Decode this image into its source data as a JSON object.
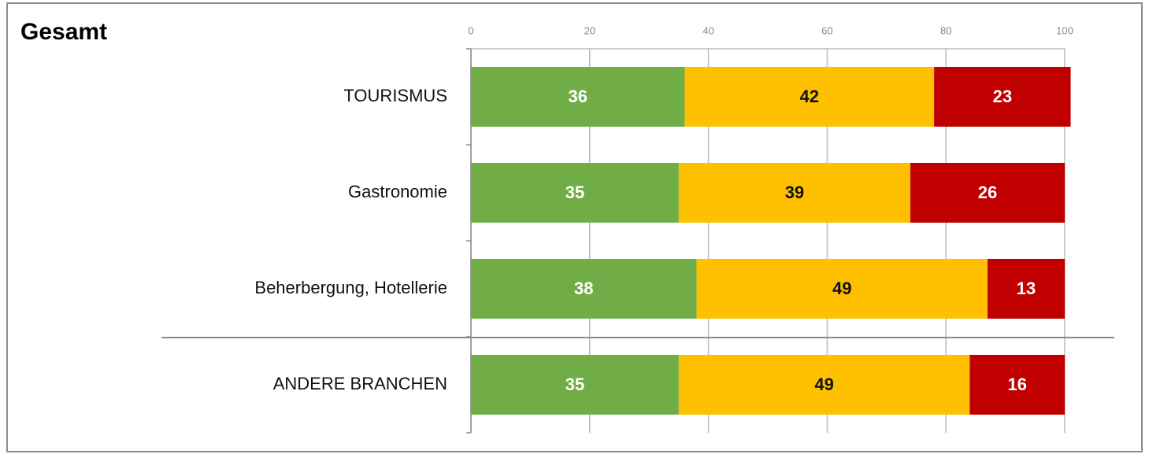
{
  "chart_data": {
    "type": "stacked-barh",
    "title": "Gesamt",
    "categories": [
      "TOURISMUS",
      "Gastronomie",
      "Beherbergung, Hotellerie",
      "ANDERE BRANCHEN"
    ],
    "series": [
      {
        "color": "#70ad47",
        "values": [
          36,
          35,
          38,
          35
        ]
      },
      {
        "color": "#ffc000",
        "values": [
          42,
          39,
          49,
          49
        ]
      },
      {
        "color": "#c00000",
        "values": [
          23,
          26,
          13,
          16
        ]
      }
    ],
    "xlim": [
      0,
      100
    ],
    "xticks": [
      0,
      20,
      40,
      60,
      80,
      100
    ],
    "grid": true
  }
}
